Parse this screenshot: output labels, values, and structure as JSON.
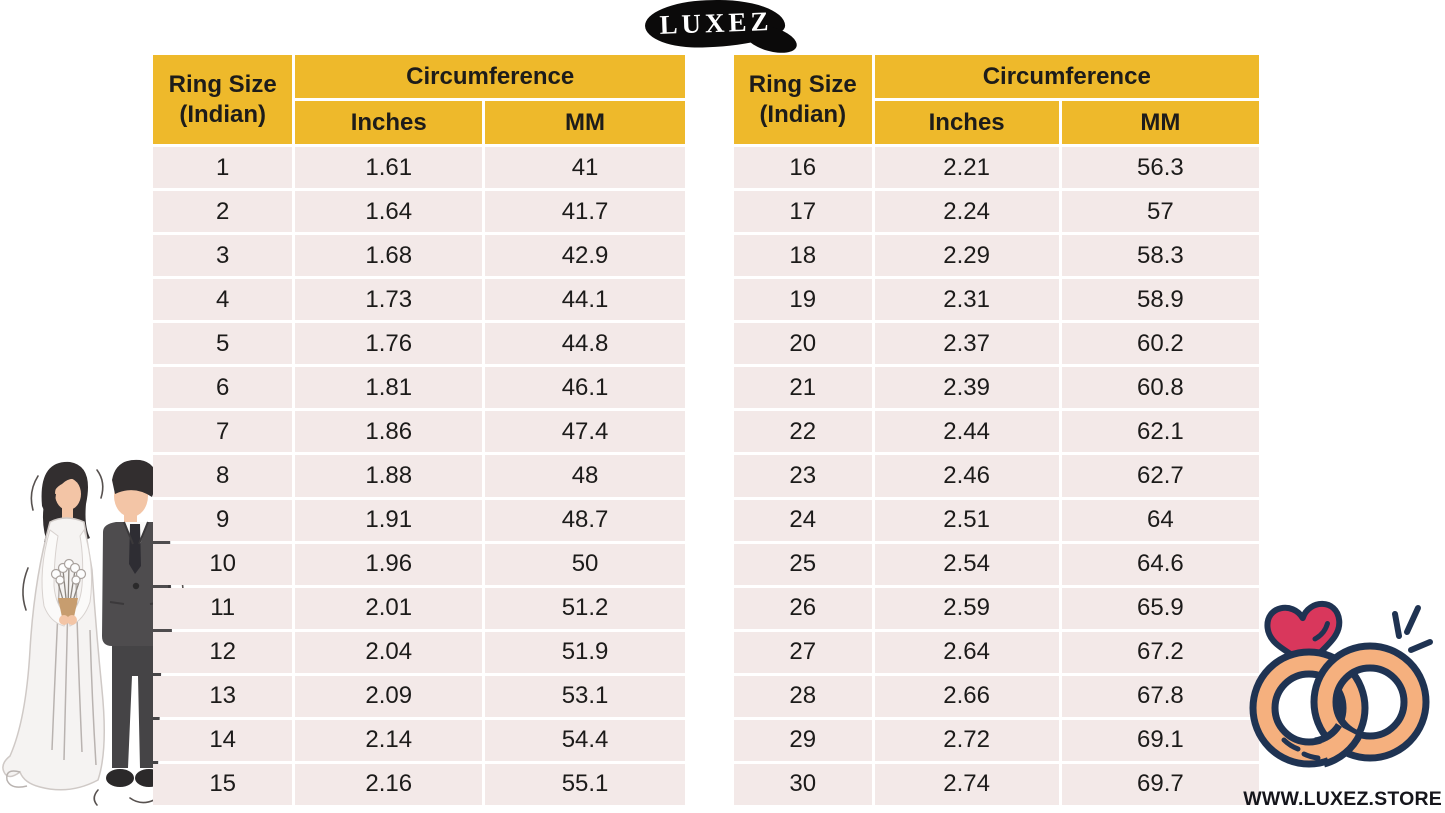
{
  "logo": {
    "text": "LUXEZ"
  },
  "tables": [
    {
      "header": {
        "ring_size_line1": "Ring Size",
        "ring_size_line2": "(Indian)",
        "circumference": "Circumference",
        "inches": "Inches",
        "mm": "MM"
      },
      "rows": [
        [
          "1",
          "1.61",
          "41"
        ],
        [
          "2",
          "1.64",
          "41.7"
        ],
        [
          "3",
          "1.68",
          "42.9"
        ],
        [
          "4",
          "1.73",
          "44.1"
        ],
        [
          "5",
          "1.76",
          "44.8"
        ],
        [
          "6",
          "1.81",
          "46.1"
        ],
        [
          "7",
          "1.86",
          "47.4"
        ],
        [
          "8",
          "1.88",
          "48"
        ],
        [
          "9",
          "1.91",
          "48.7"
        ],
        [
          "10",
          "1.96",
          "50"
        ],
        [
          "11",
          "2.01",
          "51.2"
        ],
        [
          "12",
          "2.04",
          "51.9"
        ],
        [
          "13",
          "2.09",
          "53.1"
        ],
        [
          "14",
          "2.14",
          "54.4"
        ],
        [
          "15",
          "2.16",
          "55.1"
        ]
      ]
    },
    {
      "header": {
        "ring_size_line1": "Ring Size",
        "ring_size_line2": "(Indian)",
        "circumference": "Circumference",
        "inches": "Inches",
        "mm": "MM"
      },
      "rows": [
        [
          "16",
          "2.21",
          "56.3"
        ],
        [
          "17",
          "2.24",
          "57"
        ],
        [
          "18",
          "2.29",
          "58.3"
        ],
        [
          "19",
          "2.31",
          "58.9"
        ],
        [
          "20",
          "2.37",
          "60.2"
        ],
        [
          "21",
          "2.39",
          "60.8"
        ],
        [
          "22",
          "2.44",
          "62.1"
        ],
        [
          "23",
          "2.46",
          "62.7"
        ],
        [
          "24",
          "2.51",
          "64"
        ],
        [
          "25",
          "2.54",
          "64.6"
        ],
        [
          "26",
          "2.59",
          "65.9"
        ],
        [
          "27",
          "2.64",
          "67.2"
        ],
        [
          "28",
          "2.66",
          "67.8"
        ],
        [
          "29",
          "2.72",
          "69.1"
        ],
        [
          "30",
          "2.74",
          "69.7"
        ]
      ]
    }
  ],
  "footer": {
    "website": "WWW.LUXEZ.STORE"
  },
  "icons": {
    "logo_badge": "black-blob-badge",
    "couple": "bride-and-groom-illustration",
    "rings": "interlocked-wedding-rings-with-heart",
    "sparkles": "sparkle-lines"
  },
  "colors": {
    "header_yellow": "#EEB92B",
    "row_pink": "#F3E9E8",
    "text_dark": "#1C1B1A",
    "ring_peach": "#F5B07E",
    "ring_navy": "#1F3352",
    "heart_red": "#D9375C",
    "suit_gray": "#4E4C4E",
    "hair_dark": "#322E2F",
    "skin_peach": "#F3C5A6"
  }
}
